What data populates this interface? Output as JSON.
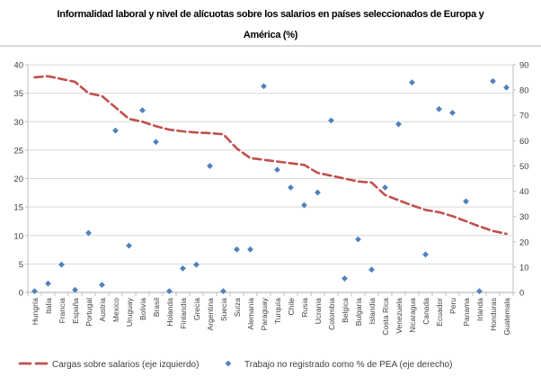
{
  "chart": {
    "title_lines": [
      "Informalidad laboral y nivel de alícuotas sobre los salarios en países seleccionados de Europa y",
      "América (%)"
    ],
    "legend": [
      {
        "label": "Cargas sobre salarios (eje izquierdo)",
        "marker": "red-dash"
      },
      {
        "label": "Trabajo no registrado como % de PEA (eje derecho)",
        "marker": "blue-diamond"
      }
    ],
    "colors": {
      "line": "#C0504D",
      "points": "#4F81BD",
      "grid": "#D9D9D9",
      "axis": "#BFBFBF",
      "text": "#404040",
      "title_text": "#000000"
    }
  },
  "chart_data": {
    "type": "line",
    "title": "Informalidad laboral y nivel de alícuotas sobre los salarios en países seleccionados de Europa y América (%)",
    "categories": [
      "Hungría",
      "Italia",
      "Francia",
      "España",
      "Portugal",
      "Austria",
      "Mexico",
      "Uruguay",
      "Bolivia",
      "Brasil",
      "Holanda",
      "Finlandia",
      "Grecia",
      "Argentina",
      "Suecia",
      "Suiza",
      "Alemania",
      "Paraguay",
      "Turquía",
      "Chile",
      "Rusia",
      "Ucrania",
      "Colombia",
      "Belgica",
      "Bulgaria",
      "Islandia",
      "Costa Rica",
      "Venezuela",
      "Nicaragua",
      "Canada",
      "Ecuador",
      "Peru",
      "Panama",
      "Irlanda",
      "Honduras",
      "Guatemala"
    ],
    "series": [
      {
        "name": "Cargas sobre salarios (eje izquierdo)",
        "type": "line",
        "style": "dashed",
        "axis": "left",
        "color": "#C0504D",
        "values": [
          37.8,
          38,
          37.5,
          37,
          35,
          34.5,
          32.5,
          30.5,
          30,
          29.2,
          28.6,
          28.3,
          28.1,
          28,
          27.8,
          25.3,
          23.6,
          23.3,
          23,
          22.7,
          22.4,
          21,
          20.5,
          20,
          19.5,
          19.3,
          17.1,
          16.2,
          15.3,
          14.5,
          14.1,
          13.4,
          12.5,
          11.6,
          10.8,
          10.3
        ]
      },
      {
        "name": "Trabajo no registrado como % de PEA (eje derecho)",
        "type": "scatter",
        "style": "diamond",
        "axis": "right",
        "color": "#4F81BD",
        "values": [
          0.5,
          3.5,
          11,
          1,
          23.5,
          3,
          64,
          18.5,
          72,
          59.5,
          0.5,
          9.5,
          11,
          50,
          0.5,
          17,
          17,
          81.5,
          48.5,
          41.5,
          34.5,
          39.5,
          68,
          5.5,
          21,
          9,
          41.5,
          66.5,
          83,
          15,
          72.5,
          71,
          36,
          0.5,
          83.5,
          81
        ]
      }
    ],
    "left_axis": {
      "min": 0,
      "max": 40,
      "step": 5,
      "ticks": [
        0,
        5,
        10,
        15,
        20,
        25,
        30,
        35,
        40
      ]
    },
    "right_axis": {
      "min": 0,
      "max": 90,
      "step": 10,
      "ticks": [
        0,
        10,
        20,
        30,
        40,
        50,
        60,
        70,
        80,
        90
      ]
    },
    "grid": true,
    "legend_position": "bottom"
  }
}
